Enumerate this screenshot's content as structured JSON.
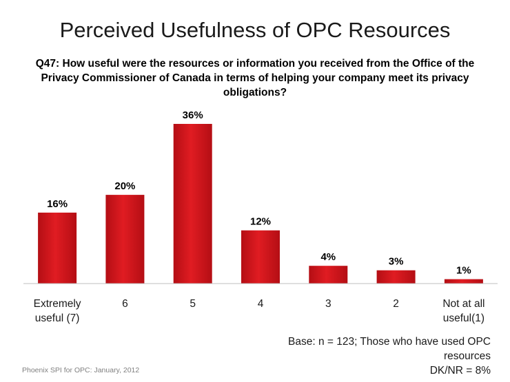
{
  "title": "Perceived Usefulness of OPC Resources",
  "question": "Q47: How useful were the resources or information you received from the Office of the Privacy Commissioner of Canada in terms of helping your company meet its privacy obligations?",
  "base_note": {
    "line1": "Base: n = 123; Those who have used OPC resources",
    "line2": "DK/NR = 8%"
  },
  "footer": "Phoenix SPI for OPC: January, 2012",
  "chart_data": {
    "type": "bar",
    "title": "Perceived Usefulness of OPC Resources",
    "xlabel": "",
    "ylabel": "",
    "categories": [
      [
        "Extremely",
        "useful (7)"
      ],
      [
        "6"
      ],
      [
        "5"
      ],
      [
        "4"
      ],
      [
        "3"
      ],
      [
        "2"
      ],
      [
        "Not at all",
        "useful(1)"
      ]
    ],
    "values": [
      16,
      20,
      36,
      12,
      4,
      3,
      1
    ],
    "data_labels": [
      "16%",
      "20%",
      "36%",
      "12%",
      "4%",
      "3%",
      "1%"
    ],
    "ylim": [
      0,
      36
    ],
    "grid": false,
    "legend": "none",
    "bar_color": "#d0141b"
  }
}
